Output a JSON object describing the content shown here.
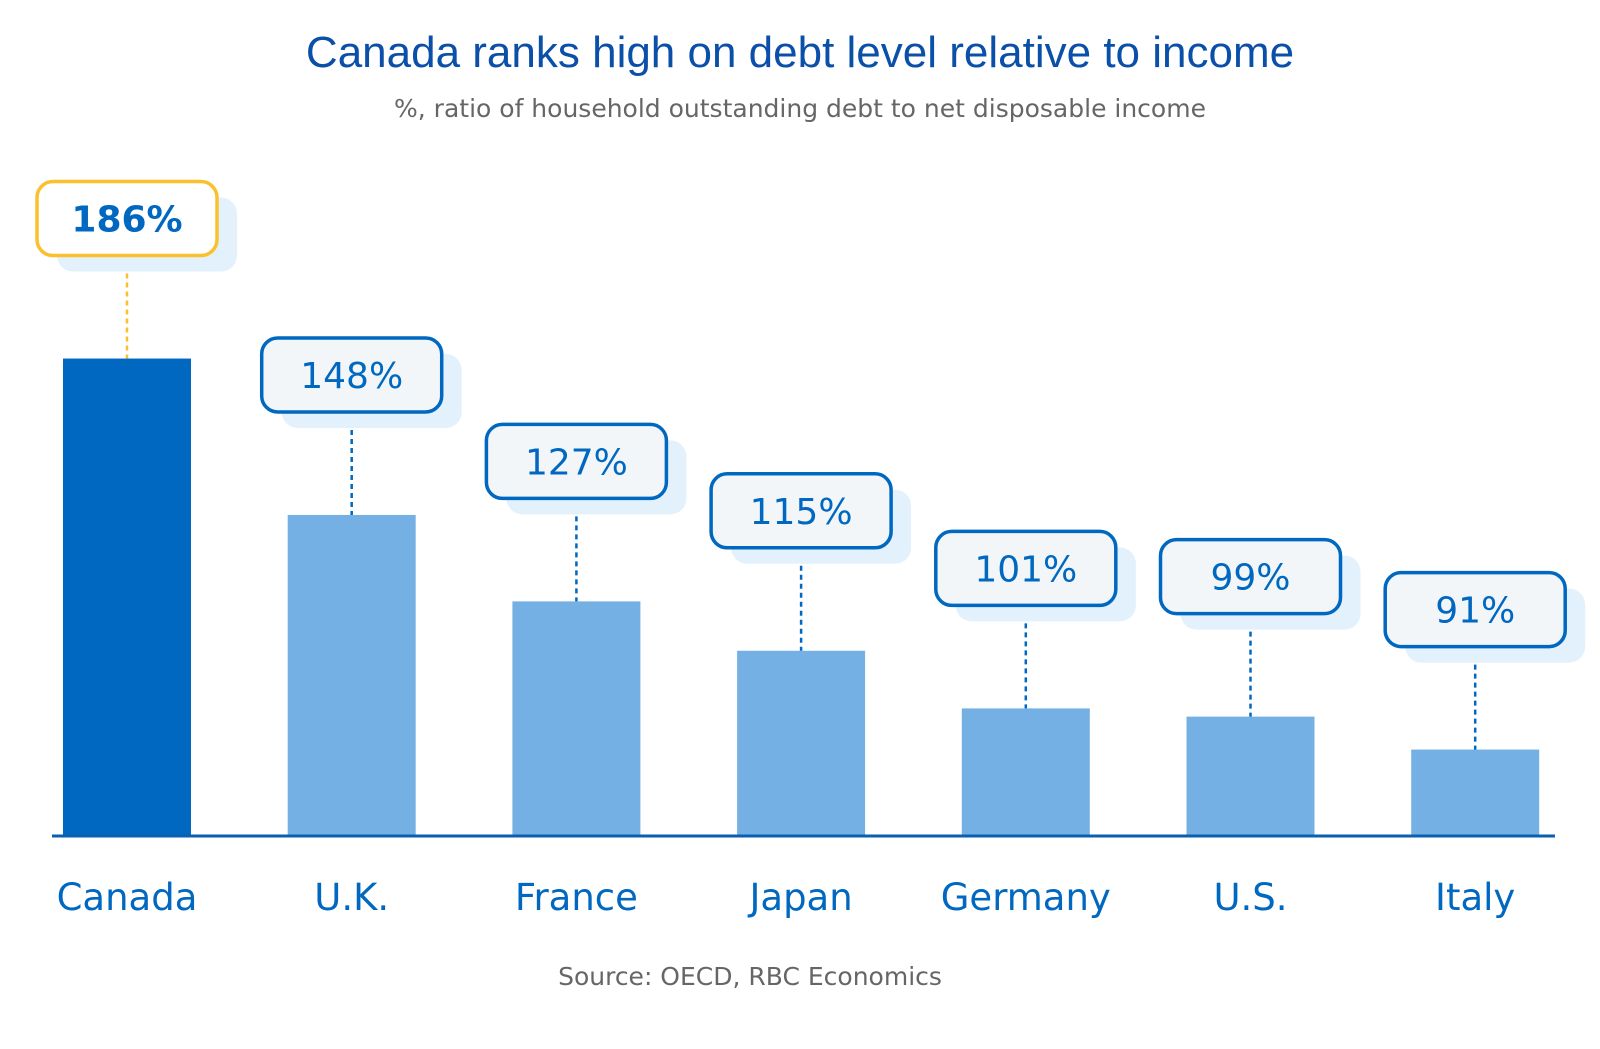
{
  "chart_data": {
    "type": "bar",
    "title": "Canada ranks high on debt level relative to income",
    "subtitle": "%, ratio of household outstanding debt to net disposable income",
    "categories": [
      "Canada",
      "U.K.",
      "France",
      "Japan",
      "Germany",
      "U.S.",
      "Italy"
    ],
    "values": [
      186,
      148,
      127,
      115,
      101,
      99,
      91
    ],
    "labels": [
      "186%",
      "148%",
      "127%",
      "115%",
      "101%",
      "99%",
      "91%"
    ],
    "highlight": "Canada",
    "xlabel": "",
    "ylabel": "",
    "ylim": [
      70,
      200
    ],
    "grid": false,
    "source": "Source: OECD, RBC Economics",
    "colors": {
      "highlight_bar": "#0068c0",
      "bar": "#74b0e3",
      "highlight_label_border": "#fbc02d",
      "label_border": "#0068c0",
      "label_shadow": "#e2f1fc",
      "label_fill": "#f2f6f9"
    }
  }
}
